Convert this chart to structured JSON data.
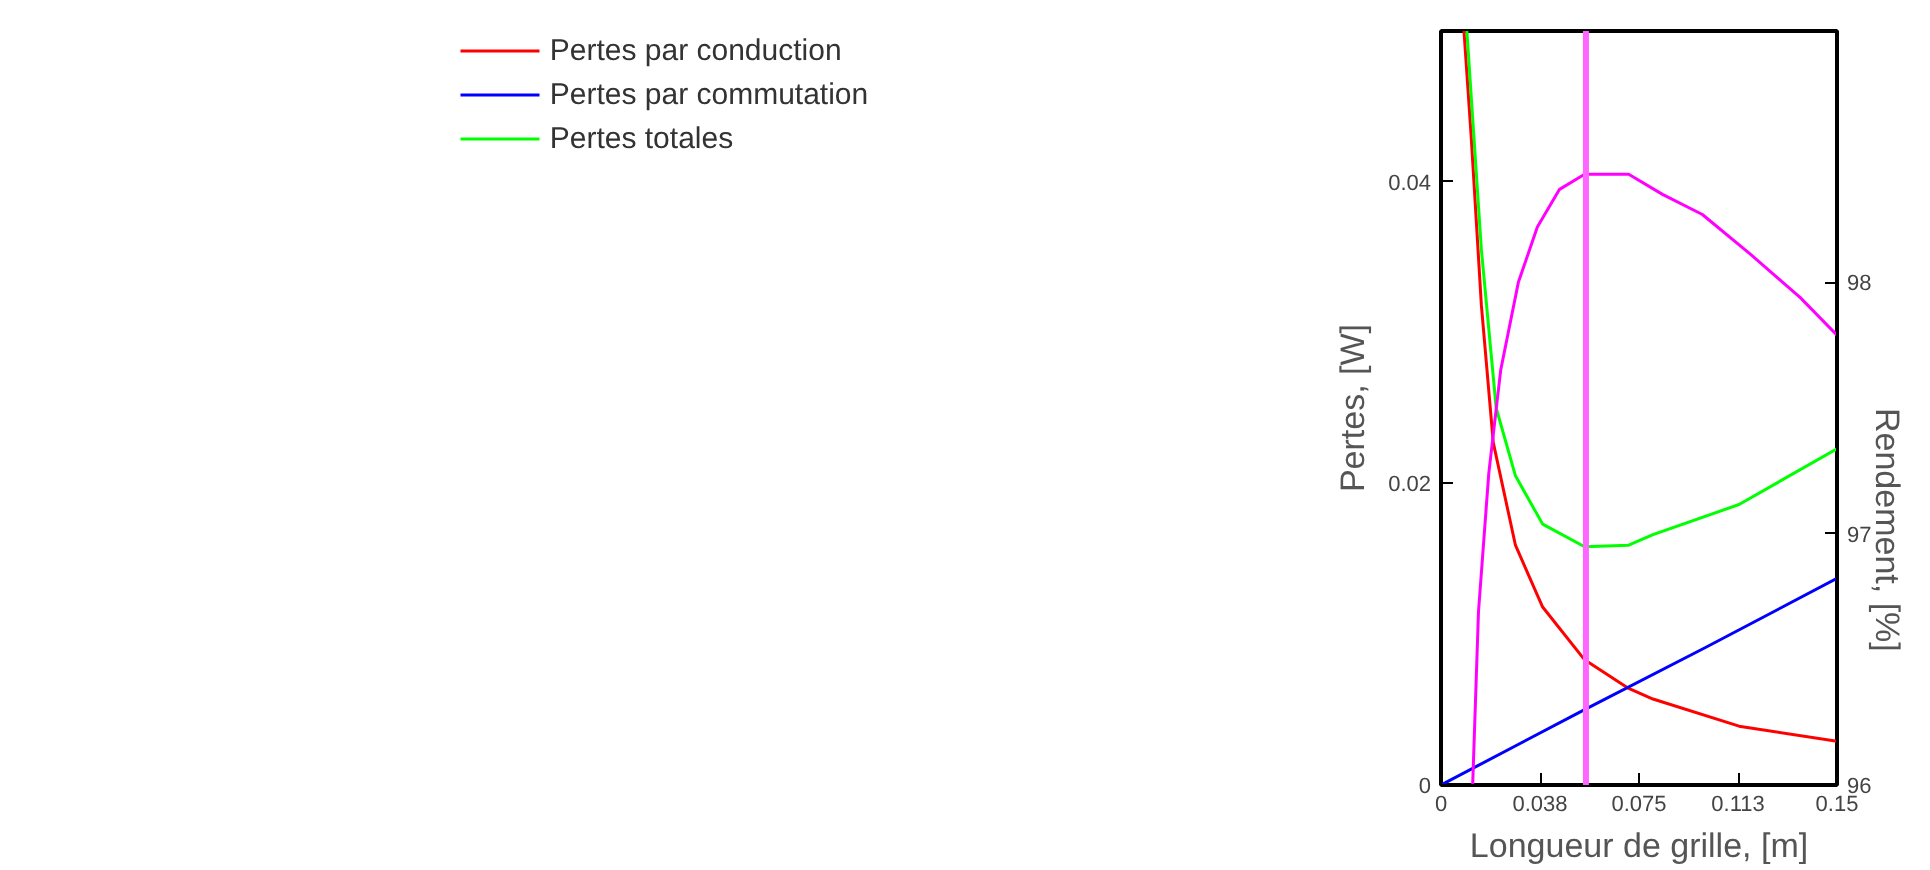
{
  "chart_data": {
    "type": "line",
    "xlabel": "Longueur de grille, [m]",
    "ylabel": "Pertes, [W]",
    "y2label": "Rendement, [%]",
    "xlim": [
      0,
      0.15
    ],
    "ylim": [
      0,
      0.05
    ],
    "y2lim": [
      96,
      99
    ],
    "xticks": [
      0,
      {
        "value": 0.0375,
        "label": "0.038"
      },
      {
        "value": 0.075,
        "label": "0.075"
      },
      {
        "value": 0.1125,
        "label": "0.113"
      },
      {
        "value": 0.15,
        "label": "0.15"
      }
    ],
    "yticks": [
      0,
      0.02,
      0.04
    ],
    "y2ticks": [
      96,
      97,
      98
    ],
    "grid": false,
    "legend": "left",
    "marker": "none",
    "line_style": "solid",
    "series": [
      {
        "name": "Pertes par conduction",
        "color": "#ff0000",
        "x": [
          0.0087,
          0.0114,
          0.0153,
          0.0198,
          0.0282,
          0.0385,
          0.0544,
          0.0711,
          0.0803,
          0.1129,
          0.15
        ],
        "values": [
          0.05,
          0.0431,
          0.0318,
          0.0227,
          0.0159,
          0.0118,
          0.0083,
          0.0064,
          0.0057,
          0.0039,
          0.0029
        ]
      },
      {
        "name": "Pertes par commutation",
        "color": "#0000ff",
        "x": [
          0,
          0.0544,
          0.1,
          0.15
        ],
        "values": [
          0,
          0.005,
          0.0091,
          0.0137
        ]
      },
      {
        "name": "Pertes totales",
        "color": "#00ff00",
        "x": [
          0.0098,
          0.0153,
          0.0209,
          0.0282,
          0.0385,
          0.0544,
          0.0711,
          0.0803,
          0.1129,
          0.15
        ],
        "values": [
          0.05,
          0.0355,
          0.025,
          0.0205,
          0.0173,
          0.0158,
          0.0159,
          0.0166,
          0.0186,
          0.0223
        ]
      },
      {
        "color": "#ff00ff",
        "axis": "y2",
        "x": [
          0.012,
          0.0142,
          0.0181,
          0.0226,
          0.0293,
          0.0365,
          0.0449,
          0.0544,
          0.0711,
          0.0839,
          0.099,
          0.1174,
          0.136,
          0.15
        ],
        "values": [
          96,
          96.69,
          97.24,
          97.65,
          98.0,
          98.22,
          98.37,
          98.43,
          98.43,
          98.35,
          98.27,
          98.11,
          97.94,
          97.79
        ]
      }
    ],
    "ref_lines": [
      {
        "axis": "x",
        "value": 0.0549,
        "color": "#ff66ff"
      }
    ]
  }
}
